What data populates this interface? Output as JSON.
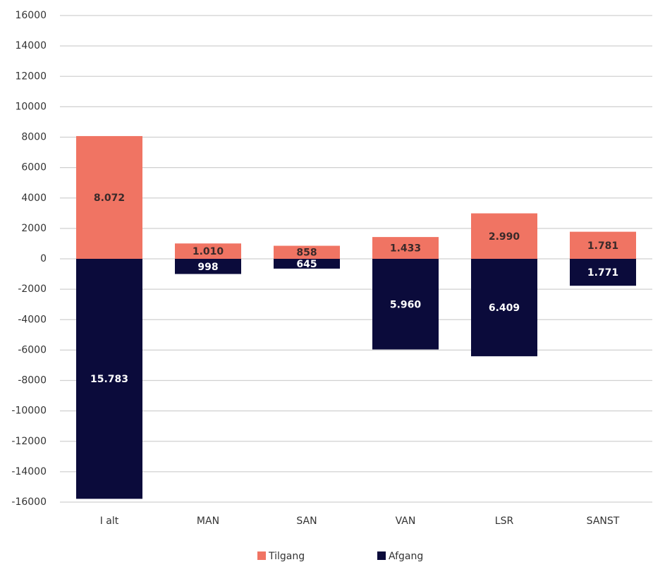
{
  "chart_data": {
    "type": "bar",
    "stacked": true,
    "categories": [
      "I alt",
      "MAN",
      "SAN",
      "VAN",
      "LSR",
      "SANST"
    ],
    "series": [
      {
        "name": "Tilgang",
        "color": "#f07463",
        "label_color": "#3a2a2a",
        "values": [
          8072,
          1010,
          858,
          1433,
          2990,
          1781
        ],
        "value_labels": [
          "8.072",
          "1.010",
          "858",
          "1.433",
          "2.990",
          "1.781"
        ]
      },
      {
        "name": "Afgang",
        "color": "#0b0b3b",
        "label_color": "#ffffff",
        "values": [
          -15783,
          -998,
          -645,
          -5960,
          -6409,
          -1771
        ],
        "value_labels": [
          "15.783",
          "998",
          "645",
          "5.960",
          "6.409",
          "1.771"
        ]
      }
    ],
    "ylim": [
      -16000,
      16000
    ],
    "yticks": [
      16000,
      14000,
      12000,
      10000,
      8000,
      6000,
      4000,
      2000,
      0,
      -2000,
      -4000,
      -6000,
      -8000,
      -10000,
      -12000,
      -14000,
      -16000
    ],
    "grid": true,
    "legend": "bottom"
  }
}
